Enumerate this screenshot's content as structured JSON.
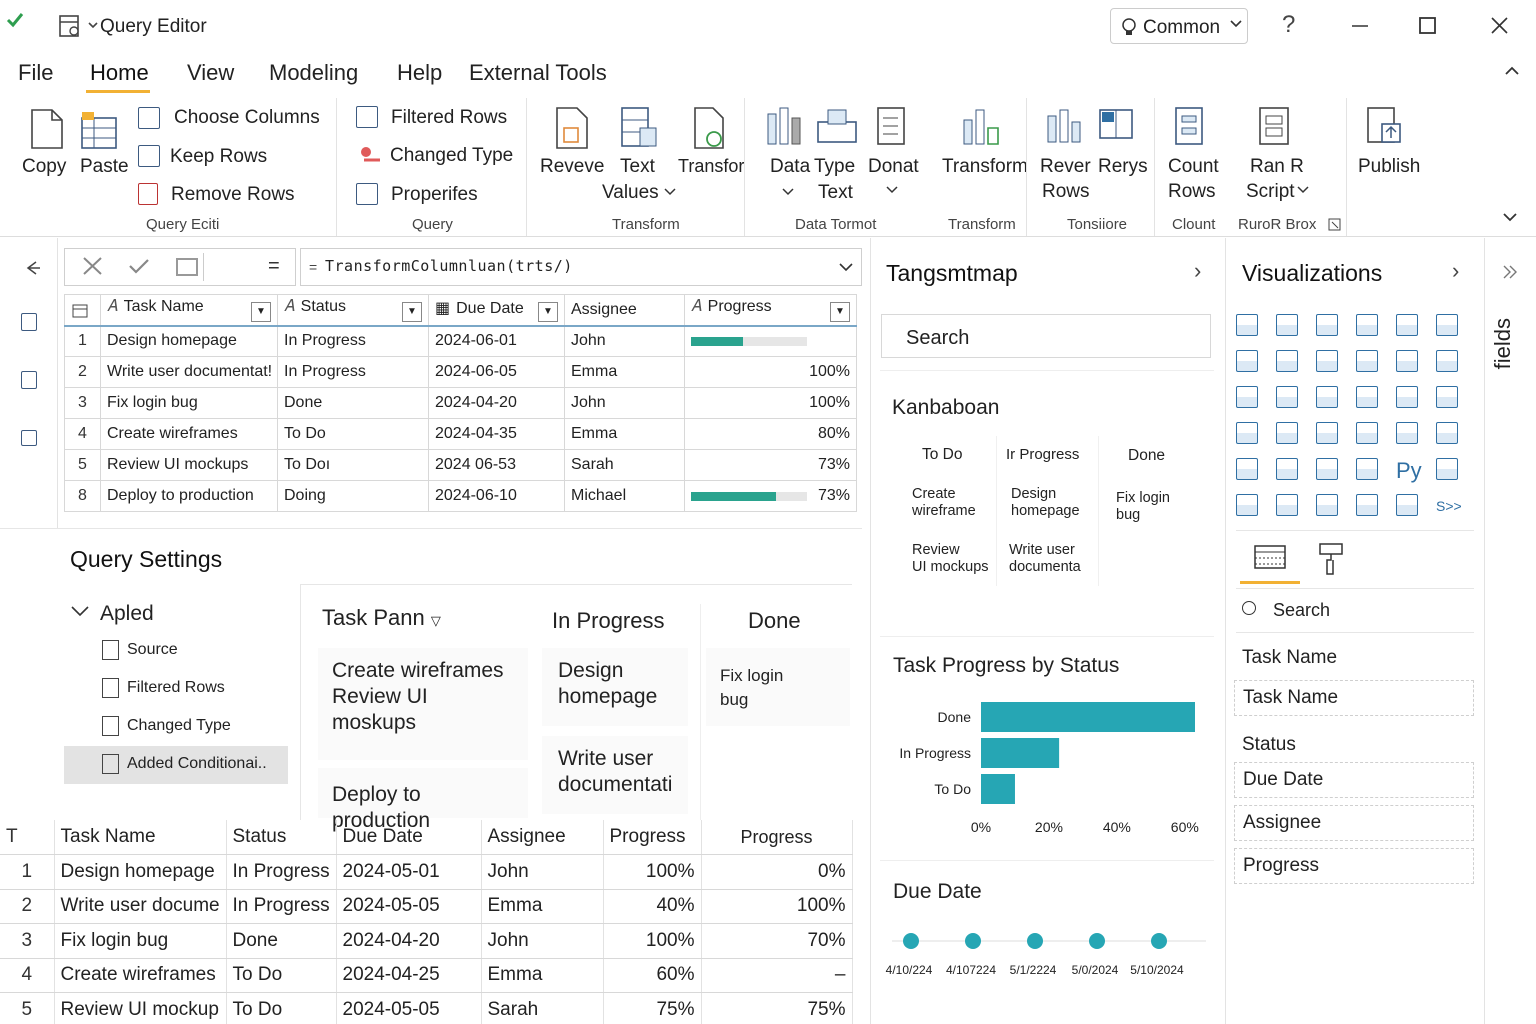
{
  "titlebar": {
    "title": "Query Editor",
    "profile": "Common",
    "help": "?",
    "minimize": "—",
    "maximize": "☐",
    "close": "✕"
  },
  "menu": {
    "items": [
      "File",
      "Home",
      "View",
      "Modeling",
      "Help",
      "External Tools"
    ],
    "active": "Home"
  },
  "ribbon": {
    "copy": "Copy",
    "paste": "Paste",
    "choose_columns": "Choose Columns",
    "keep_rows": "Keep Rows",
    "remove_rows": "Remove Rows",
    "group1": "Query Eciti",
    "filtered_rows": "Filtered Rows",
    "changed_type": "Changed Type",
    "properties": "Properifes",
    "group2": "Query",
    "reveve": "Reveve",
    "text_values": [
      "Text",
      "Values"
    ],
    "transfor": "Transfor",
    "group3": "Transform",
    "data_type": [
      "Data",
      "Type"
    ],
    "type_text": "Text",
    "donat": "Donat",
    "group4": "Data Tormot",
    "transform": "Transform",
    "group5": "Transform",
    "rever_rows": [
      "Rever",
      "Rows"
    ],
    "rerys": "Rerys",
    "group6": "Tonsiiore",
    "count_rows": [
      "Count",
      "Rows"
    ],
    "group7": "Clount",
    "ran_script": [
      "Ran R",
      "Script"
    ],
    "group8": "RuroR Brox",
    "publish": "Publish"
  },
  "formula": {
    "text": "TransformColumnluan(trts/)",
    "eq": "=",
    "prefix": "="
  },
  "grid_top": {
    "headers": [
      "Task Name",
      "Status",
      "Due Date",
      "Assignee",
      "Progress"
    ],
    "rows": [
      {
        "n": "1",
        "task": "Design homepage",
        "status": "In Progress",
        "due": "2024-06-01",
        "assignee": "John",
        "progress": "",
        "bar": 0.45
      },
      {
        "n": "2",
        "task": "Write user documentat!",
        "status": "In Progress",
        "due": "2024-06-05",
        "assignee": "Emma",
        "progress": "100%"
      },
      {
        "n": "3",
        "task": "Fix login bug",
        "status": "Done",
        "due": "2024-04-20",
        "assignee": "John",
        "progress": "100%"
      },
      {
        "n": "4",
        "task": "Create wireframes",
        "status": "To Do",
        "due": "2024-04-35",
        "assignee": "Emma",
        "progress": "80%"
      },
      {
        "n": "5",
        "task": "Review UI mockups",
        "status": "To Doı",
        "due": "2024 06-53",
        "assignee": "Sarah",
        "progress": "73%"
      },
      {
        "n": "8",
        "task": "Deploy to production",
        "status": "Doing",
        "due": "2024-06-10",
        "assignee": "Michael",
        "progress": "73%",
        "bar": 0.73
      }
    ]
  },
  "query_settings": {
    "title": "Query Settings",
    "applied": "Apled",
    "steps": [
      "Source",
      "Filtered Rows",
      "Changed Type",
      "Added Conditionai.."
    ]
  },
  "task_pane": {
    "col1": "Task Pann",
    "col2": "In Progress",
    "col3": "Done",
    "col1_cards": [
      "Create wireframes",
      "Review UI",
      "moskups"
    ],
    "col1_card2": "Deploy to production",
    "col2_card1": [
      "Design",
      "homepage"
    ],
    "col2_card2": [
      "Write user",
      "documentati"
    ],
    "col3_card1": [
      "Fix login",
      "bug"
    ]
  },
  "grid_bottom": {
    "headers": [
      "T",
      "Task Name",
      "Status",
      "Due Date",
      "Assignee",
      "Progress",
      "Progress"
    ],
    "rows": [
      {
        "n": "1",
        "task": "Design homepage",
        "status": "In Progress",
        "due": "2024-05-01",
        "assignee": "John",
        "p1": "100%",
        "p2": "0%"
      },
      {
        "n": "2",
        "task": "Write user docume",
        "status": "In Progress",
        "due": "2024-05-05",
        "assignee": "Emma",
        "p1": "40%",
        "p2": "100%"
      },
      {
        "n": "3",
        "task": "Fix login bug",
        "status": "Done",
        "due": "2024-04-20",
        "assignee": "John",
        "p1": "100%",
        "p2": "70%"
      },
      {
        "n": "4",
        "task": "Create wireframes",
        "status": "To Do",
        "due": "2024-04-25",
        "assignee": "Emma",
        "p1": "60%",
        "p2": "–"
      },
      {
        "n": "5",
        "task": "Review UI mockup",
        "status": "To Do",
        "due": "2024-05-05",
        "assignee": "Sarah",
        "p1": "75%",
        "p2": "75%"
      }
    ]
  },
  "report": {
    "title": "Tangsmtmap",
    "search": "Search",
    "kanban_title": "Kanbaboan",
    "kanban_cols": [
      "To Do",
      "Ir Progress",
      "Done"
    ],
    "kanban_cards": {
      "todo": [
        [
          "Create",
          "wireframe"
        ],
        [
          "Review",
          "UI mockups"
        ]
      ],
      "inprog": [
        [
          "Design",
          "homepage"
        ],
        [
          "Write user",
          "documenta"
        ]
      ],
      "done": [
        [
          "Fix login",
          "bug"
        ]
      ]
    },
    "chart_title": "Task Progress by Status",
    "due_title": "Due Date",
    "due_labels": [
      "4/10/224",
      "4/107224",
      "5/1/2224",
      "5/0/2024",
      "5/10/2024"
    ]
  },
  "chart_data": {
    "type": "bar",
    "orientation": "horizontal",
    "title": "Task Progress by Status",
    "categories": [
      "Done",
      "In Progress",
      "To Do"
    ],
    "values": [
      63,
      23,
      10
    ],
    "xticks": [
      "0%",
      "20%",
      "40%",
      "60%"
    ],
    "xlim": [
      0,
      63
    ],
    "color": "#26a6b4"
  },
  "visualizations": {
    "title": "Visualizations",
    "py": "Py",
    "scr": "S>>",
    "search": "Search",
    "fields": [
      "Task Name",
      "Task Name",
      "Status",
      "Due Date",
      "Assignee",
      "Progress"
    ],
    "side_tab": "fields"
  },
  "colors": {
    "accent": "#f2b134",
    "teal": "#26a6b4",
    "check": "#2e9e4f",
    "progress": "#2aa38e"
  }
}
